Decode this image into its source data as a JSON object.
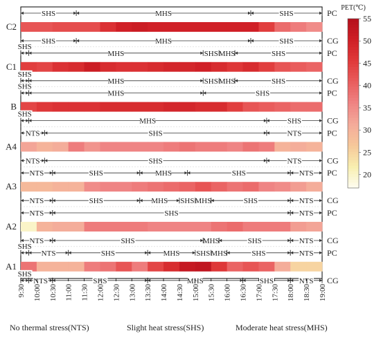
{
  "chart_data": {
    "type": "heatmap",
    "x_ticks": [
      "9:30",
      "10:00",
      "10:30",
      "11:00",
      "11:30",
      "12:00",
      "12:30",
      "13:00",
      "13:30",
      "14:00",
      "14:30",
      "15:00",
      "15:30",
      "16:00",
      "16:30",
      "17:00",
      "17:30",
      "18:00",
      "18:30",
      "19:00"
    ],
    "colorbar": {
      "title": "PET(℃)",
      "min": 17,
      "max": 55,
      "ticks": [
        20,
        25,
        30,
        35,
        40,
        45,
        50,
        55
      ],
      "colors": [
        "#fefdf2",
        "#f8efb0",
        "#f6c89a",
        "#f4ab9a",
        "#ef8484",
        "#e95e5e",
        "#e03a3a",
        "#cf1f26",
        "#b5101c"
      ]
    },
    "rows": [
      {
        "label": "C2",
        "pet": [
          42,
          42,
          43,
          43,
          43,
          47,
          50,
          51,
          50,
          50,
          50,
          50,
          50,
          50,
          50,
          45,
          39,
          37,
          35
        ],
        "pc": [
          {
            "from": 0,
            "to": 3.5,
            "label": "SHS"
          },
          {
            "from": 3.5,
            "to": 14.5,
            "label": "MHS"
          },
          {
            "from": 14.5,
            "to": 19,
            "label": "SHS"
          }
        ],
        "cg": [
          {
            "from": 0,
            "to": 3.5,
            "label": "SHS"
          },
          {
            "from": 3.5,
            "to": 14.5,
            "label": "MHS"
          },
          {
            "from": 14.5,
            "to": 19,
            "label": "SHS"
          }
        ]
      },
      {
        "label": "C1",
        "pet": [
          45,
          44,
          47,
          48,
          51,
          48,
          47,
          47,
          48,
          49,
          49,
          50,
          48,
          46,
          48,
          45,
          42,
          41,
          40
        ],
        "pc": [
          {
            "from": 0,
            "to": 0.5,
            "label": "SHS"
          },
          {
            "from": 0.5,
            "to": 11.5,
            "label": "MHS"
          },
          {
            "from": 11.5,
            "to": 12.5,
            "label": "SHS"
          },
          {
            "from": 12.5,
            "to": 13.5,
            "label": "MHS"
          },
          {
            "from": 13.5,
            "to": 19,
            "label": "SHS"
          }
        ],
        "cg": [
          {
            "from": 0,
            "to": 0.5,
            "label": "SHS"
          },
          {
            "from": 0.5,
            "to": 11.5,
            "label": "MHS"
          },
          {
            "from": 11.5,
            "to": 12.5,
            "label": "SHS"
          },
          {
            "from": 12.5,
            "to": 13.5,
            "label": "MHS"
          },
          {
            "from": 13.5,
            "to": 19,
            "label": "SHS"
          }
        ]
      },
      {
        "label": "B",
        "pet": [
          44,
          46,
          47,
          47,
          47,
          48,
          48,
          48,
          48,
          49,
          49,
          48,
          48,
          45,
          42,
          41,
          40,
          39,
          39
        ],
        "pc": [
          {
            "from": 0,
            "to": 0.5,
            "label": "SHS"
          },
          {
            "from": 0.5,
            "to": 11.5,
            "label": "MHS"
          },
          {
            "from": 11.5,
            "to": 19,
            "label": "SHS"
          }
        ],
        "cg": [
          {
            "from": 0,
            "to": 0.5,
            "label": "SHS"
          },
          {
            "from": 0.5,
            "to": 15.5,
            "label": "MHS"
          },
          {
            "from": 15.5,
            "to": 19,
            "label": "SHS"
          }
        ]
      },
      {
        "label": "A4",
        "pet": [
          32,
          30,
          31,
          37,
          34,
          36,
          36,
          36,
          36,
          37,
          38,
          37,
          37,
          36,
          38,
          37,
          30,
          31,
          30
        ],
        "pc": [
          {
            "from": 0,
            "to": 1.5,
            "label": "NTS"
          },
          {
            "from": 1.5,
            "to": 15.5,
            "label": "SHS"
          },
          {
            "from": 15.5,
            "to": 19,
            "label": "NTS"
          }
        ],
        "cg": [
          {
            "from": 0,
            "to": 1.5,
            "label": "NTS"
          },
          {
            "from": 1.5,
            "to": 15.5,
            "label": "SHS"
          },
          {
            "from": 15.5,
            "to": 19,
            "label": "NTS"
          }
        ]
      },
      {
        "label": "A3",
        "pet": [
          29,
          29,
          30,
          30,
          35,
          36,
          36,
          37,
          38,
          39,
          40,
          42,
          40,
          38,
          39,
          36,
          35,
          33,
          31
        ],
        "pc": [
          {
            "from": 0,
            "to": 2,
            "label": "NTS"
          },
          {
            "from": 2,
            "to": 7.5,
            "label": "SHS"
          },
          {
            "from": 7.5,
            "to": 10.5,
            "label": "MHS"
          },
          {
            "from": 10.5,
            "to": 17,
            "label": "SHS"
          },
          {
            "from": 17,
            "to": 19,
            "label": "NTS"
          }
        ],
        "cg": [
          {
            "from": 0,
            "to": 2,
            "label": "NTS"
          },
          {
            "from": 2,
            "to": 7.5,
            "label": "SHS"
          },
          {
            "from": 7.5,
            "to": 10,
            "label": "MHS"
          },
          {
            "from": 10,
            "to": 11,
            "label": "SHS"
          },
          {
            "from": 11,
            "to": 12,
            "label": "MHS"
          },
          {
            "from": 12,
            "to": 17,
            "label": "SHS"
          },
          {
            "from": 17,
            "to": 19,
            "label": "NTS"
          }
        ]
      },
      {
        "label": "A2",
        "pet": [
          20,
          30,
          31,
          31,
          37,
          37,
          37,
          37,
          36,
          36,
          36,
          36,
          38,
          39,
          37,
          37,
          37,
          33,
          32
        ],
        "pc": [
          {
            "from": 0,
            "to": 2,
            "label": "NTS"
          },
          {
            "from": 2,
            "to": 17,
            "label": "SHS"
          },
          {
            "from": 17,
            "to": 19,
            "label": "NTS"
          }
        ],
        "cg": [
          {
            "from": 0,
            "to": 2,
            "label": "NTS"
          },
          {
            "from": 2,
            "to": 11.5,
            "label": "SHS"
          },
          {
            "from": 11.5,
            "to": 12.5,
            "label": "MHS"
          },
          {
            "from": 12.5,
            "to": 17,
            "label": "SHS"
          },
          {
            "from": 17,
            "to": 19,
            "label": "NTS"
          }
        ]
      },
      {
        "label": "A1",
        "pet": [
          38,
          30,
          30,
          30,
          37,
          38,
          42,
          37,
          44,
          48,
          52,
          53,
          46,
          40,
          42,
          40,
          31,
          25,
          25
        ],
        "pc": [
          {
            "from": 0,
            "to": 0.5,
            "label": "SHS"
          },
          {
            "from": 0.5,
            "to": 3,
            "label": "NTS"
          },
          {
            "from": 3,
            "to": 8,
            "label": "SHS"
          },
          {
            "from": 8,
            "to": 11,
            "label": "MHS"
          },
          {
            "from": 11,
            "to": 12,
            "label": "SHS"
          },
          {
            "from": 12,
            "to": 13,
            "label": "MHS"
          },
          {
            "from": 13,
            "to": 17,
            "label": "SHS"
          },
          {
            "from": 17,
            "to": 19,
            "label": "NTS"
          }
        ],
        "cg": [
          {
            "from": 0,
            "to": 0.5,
            "label": "SHS"
          },
          {
            "from": 0.5,
            "to": 2,
            "label": "NTS"
          },
          {
            "from": 2,
            "to": 8,
            "label": "SHS"
          },
          {
            "from": 8,
            "to": 14,
            "label": "MHS"
          },
          {
            "from": 14,
            "to": 17,
            "label": "SHS"
          },
          {
            "from": 17,
            "to": 19,
            "label": "NTS"
          }
        ]
      }
    ],
    "footer": [
      "No thermal stress(NTS)",
      "Slight heat stress(SHS)",
      "Moderate heat stress(MHS)"
    ],
    "pc_label": "PC",
    "cg_label": "CG"
  }
}
